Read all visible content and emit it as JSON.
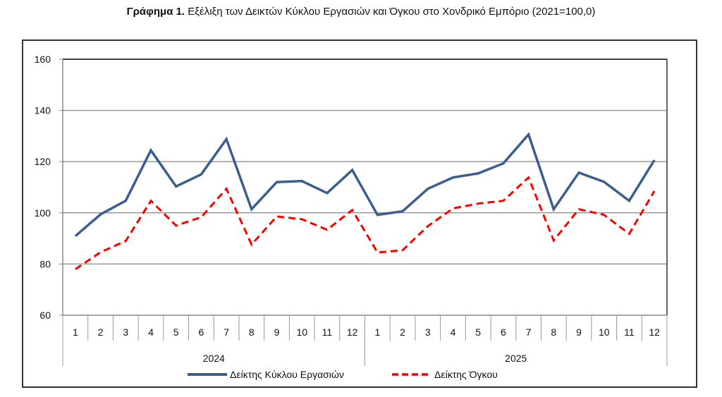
{
  "title": {
    "bold": "Γράφημα 1.",
    "text": "Εξέλιξη των Δεικτών Κύκλου Εργασιών και Όγκου στο Χονδρικό Εμπόριο (2021=100,0)"
  },
  "chart_data": {
    "type": "line",
    "title": "Γράφημα 1. Εξέλιξη των Δεικτών Κύκλου Εργασιών και Όγκου στο Χονδρικό Εμπόριο (2021=100,0)",
    "xlabel": "",
    "ylabel": "",
    "ylim": [
      60,
      160
    ],
    "yticks": [
      "60",
      "80",
      "100",
      "120",
      "140",
      "160"
    ],
    "ytick_values": [
      60,
      80,
      100,
      120,
      140,
      160
    ],
    "categories": [
      "1",
      "2",
      "3",
      "4",
      "5",
      "6",
      "7",
      "8",
      "9",
      "10",
      "11",
      "12",
      "1",
      "2",
      "3",
      "4",
      "5",
      "6",
      "7",
      "8",
      "9",
      "10",
      "11",
      "12"
    ],
    "groups": [
      {
        "label": "2024",
        "count": 12
      },
      {
        "label": "2025",
        "count": 12
      }
    ],
    "grid": true,
    "legend_position": "bottom",
    "series": [
      {
        "name": "Δείκτης Κύκλου Εργασιών",
        "color": "#3A5F8F",
        "style": "solid",
        "values": [
          90.9,
          99.4,
          104.7,
          124.4,
          110.3,
          115.0,
          128.8,
          101.4,
          112.0,
          112.4,
          107.7,
          116.7,
          99.2,
          100.6,
          109.4,
          113.8,
          115.4,
          119.3,
          130.6,
          101.4,
          115.7,
          112.1,
          104.7,
          120.6
        ]
      },
      {
        "name": "Δείκτης Όγκου",
        "color": "#FF0000",
        "style": "dashed",
        "values": [
          78.0,
          84.6,
          89.0,
          104.7,
          95.0,
          98.3,
          109.4,
          87.6,
          98.6,
          97.5,
          93.4,
          101.1,
          84.5,
          85.4,
          94.8,
          101.7,
          103.6,
          104.7,
          113.8,
          89.2,
          101.4,
          99.2,
          91.8,
          108.5
        ]
      }
    ]
  }
}
